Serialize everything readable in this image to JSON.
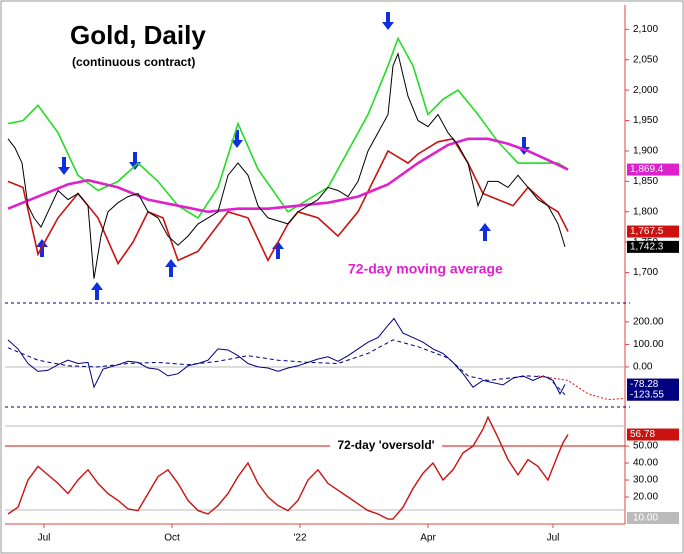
{
  "chart_data": [
    {
      "type": "line",
      "title": "Gold, Daily",
      "subtitle": "(continuous contract)",
      "annotation": "72-day moving average",
      "xlim": [
        0,
        61.7
      ],
      "ylim": [
        1650,
        2140
      ],
      "yticks": [
        {
          "value": 1700,
          "label": "1,700"
        },
        {
          "value": 1750,
          "label": "1,750"
        },
        {
          "value": 1800,
          "label": "1,800"
        },
        {
          "value": 1850,
          "label": "1,850"
        },
        {
          "value": 1900,
          "label": "1,900"
        },
        {
          "value": 1950,
          "label": "1,950"
        },
        {
          "value": 2000,
          "label": "2,000"
        },
        {
          "value": 2050,
          "label": "2,050"
        },
        {
          "value": 2100,
          "label": "2,100"
        }
      ],
      "series": [
        {
          "color": "#22dd22",
          "width": 1.6,
          "x": [
            0,
            1.5,
            3,
            5,
            7,
            9,
            11,
            13,
            15,
            17,
            19,
            21,
            23,
            25,
            28,
            30,
            32,
            34,
            36,
            38,
            39,
            40.5,
            42,
            43.5,
            45,
            47,
            49,
            51,
            53,
            55,
            56
          ],
          "values": [
            1945,
            1950,
            1975,
            1930,
            1860,
            1835,
            1850,
            1880,
            1850,
            1810,
            1790,
            1840,
            1945,
            1870,
            1800,
            1820,
            1840,
            1900,
            1960,
            2040,
            2085,
            2040,
            1960,
            1985,
            2000,
            1960,
            1915,
            1880,
            1880,
            1880,
            1870
          ]
        },
        {
          "color": "#cc1111",
          "width": 1.6,
          "x": [
            0,
            1.5,
            3,
            5,
            7,
            9,
            11,
            12.5,
            14,
            15.5,
            17,
            19,
            22,
            24,
            26,
            28,
            29,
            31,
            33,
            35,
            38,
            40,
            41,
            43,
            44.5,
            46,
            47.5,
            49,
            50.5,
            52,
            54,
            55,
            56
          ],
          "values": [
            1850,
            1840,
            1730,
            1790,
            1830,
            1790,
            1715,
            1750,
            1800,
            1790,
            1720,
            1735,
            1800,
            1790,
            1720,
            1780,
            1800,
            1790,
            1760,
            1800,
            1900,
            1880,
            1895,
            1915,
            1920,
            1880,
            1830,
            1820,
            1810,
            1840,
            1810,
            1800,
            1767.5
          ],
          "last_label": "1,767.5"
        },
        {
          "color": "#dd22cc",
          "width": 2.6,
          "x": [
            0,
            3,
            6,
            8,
            11,
            14,
            17,
            20,
            23,
            26,
            29,
            32,
            35,
            38,
            41,
            44,
            46,
            48,
            50,
            52,
            54,
            56
          ],
          "values": [
            1805,
            1825,
            1845,
            1852,
            1840,
            1820,
            1810,
            1800,
            1805,
            1805,
            1810,
            1815,
            1825,
            1845,
            1880,
            1910,
            1920,
            1920,
            1912,
            1900,
            1885,
            1869.4
          ],
          "last_label": "1,869.4"
        },
        {
          "color": "#000000",
          "width": 1,
          "x": [
            0,
            0.7,
            1.4,
            2,
            2.6,
            3.3,
            4,
            5,
            6,
            7,
            8,
            8.6,
            9.3,
            10,
            11,
            12,
            13,
            14,
            15,
            16,
            17,
            18,
            19,
            20,
            21,
            22,
            23,
            24,
            25,
            26,
            27,
            28,
            29,
            30,
            31,
            32,
            33,
            34,
            35,
            36,
            37,
            38,
            38.5,
            39,
            40,
            41,
            42,
            43,
            44,
            45,
            46,
            47,
            48,
            49,
            50,
            51,
            52,
            53,
            54,
            55,
            55.7
          ],
          "values": [
            1920,
            1905,
            1880,
            1810,
            1790,
            1775,
            1800,
            1835,
            1820,
            1830,
            1810,
            1690,
            1760,
            1800,
            1815,
            1825,
            1830,
            1800,
            1790,
            1760,
            1745,
            1760,
            1780,
            1790,
            1800,
            1860,
            1880,
            1860,
            1810,
            1790,
            1785,
            1780,
            1800,
            1810,
            1820,
            1840,
            1835,
            1825,
            1850,
            1900,
            1930,
            1960,
            2040,
            2060,
            1990,
            1950,
            1940,
            1960,
            1930,
            1910,
            1880,
            1810,
            1850,
            1850,
            1840,
            1860,
            1840,
            1820,
            1810,
            1780,
            1742.3
          ],
          "last_label": "1,742.3"
        }
      ]
    },
    {
      "type": "line",
      "xlim": [
        0,
        61.7
      ],
      "ylim": [
        -178,
        275
      ],
      "yticks": [
        {
          "value": 0,
          "label": "0.00"
        },
        {
          "value": 100,
          "label": "100.00"
        },
        {
          "value": 200,
          "label": "200.00"
        }
      ],
      "series": [
        {
          "color": "#000080",
          "width": 1,
          "style": "dashed",
          "x": [
            0,
            3,
            6,
            9,
            12,
            15,
            18,
            21,
            24,
            27,
            30,
            33,
            36,
            38.5,
            41,
            44,
            46,
            48,
            50,
            52,
            54,
            55.7
          ],
          "values": [
            85,
            30,
            5,
            0,
            15,
            20,
            10,
            25,
            50,
            30,
            20,
            15,
            60,
            120,
            90,
            40,
            -40,
            -60,
            -50,
            -40,
            -45,
            -123.55
          ],
          "last_label": "-123.55"
        },
        {
          "color": "#000080",
          "width": 1,
          "x": [
            0,
            1,
            2,
            3,
            4,
            5,
            6,
            7,
            8,
            8.6,
            9.5,
            11,
            12,
            13,
            14,
            15,
            16,
            17,
            18,
            19,
            20,
            21,
            22,
            23,
            24,
            25,
            26,
            27,
            28,
            29,
            30,
            31,
            32,
            33,
            34,
            35,
            36,
            37,
            38,
            38.6,
            39.5,
            40.5,
            41.5,
            42.5,
            43.5,
            44.5,
            45.5,
            46.5,
            47.5,
            48.5,
            49.5,
            50.5,
            51.5,
            52.5,
            53.5,
            54.5,
            55.2,
            55.7
          ],
          "values": [
            120,
            80,
            15,
            -20,
            -15,
            10,
            30,
            15,
            20,
            -90,
            -10,
            10,
            25,
            20,
            -5,
            -10,
            -40,
            -30,
            5,
            15,
            30,
            80,
            75,
            50,
            15,
            0,
            -5,
            -20,
            -5,
            5,
            20,
            35,
            45,
            25,
            50,
            80,
            110,
            130,
            185,
            215,
            150,
            130,
            110,
            80,
            60,
            20,
            -30,
            -90,
            -60,
            -70,
            -80,
            -50,
            -40,
            -60,
            -40,
            -60,
            -120,
            -78.28
          ],
          "last_label": "-78.28"
        },
        {
          "color": "#dd1111",
          "width": 1,
          "style": "dotted",
          "x": [
            53,
            56,
            58,
            60,
            61.7
          ],
          "values": [
            -40,
            -60,
            -120,
            -145,
            -140
          ]
        }
      ]
    },
    {
      "type": "line",
      "annotation": "72-day 'oversold'",
      "xlim": [
        0,
        61.7
      ],
      "ylim": [
        5.3,
        72.4
      ],
      "xticks": [
        {
          "value": 3.6,
          "label": "Jul"
        },
        {
          "value": 16.4,
          "label": "Oct"
        },
        {
          "value": 29.2,
          "label": "'22"
        },
        {
          "value": 42,
          "label": "Apr"
        },
        {
          "value": 54.5,
          "label": "Jul"
        }
      ],
      "yticks": [
        {
          "value": 20,
          "label": "20.00"
        },
        {
          "value": 30,
          "label": "30.00"
        },
        {
          "value": 40,
          "label": "40.00"
        },
        {
          "value": 50,
          "label": "50.00"
        }
      ],
      "bottom_label": "10.00",
      "line_level": 50,
      "series": [
        {
          "color": "#cc1111",
          "width": 1.4,
          "x": [
            0,
            1,
            2,
            3,
            4,
            5,
            6,
            7,
            8,
            9,
            10,
            11,
            12,
            13,
            14,
            15,
            16,
            17,
            18,
            19,
            20,
            21,
            22,
            23,
            24,
            25,
            26,
            27,
            28,
            29,
            30,
            31,
            32,
            33,
            34,
            35,
            36,
            37,
            38,
            38.5,
            39.5,
            40.5,
            41.5,
            42.5,
            43.5,
            44.5,
            45.5,
            46.5,
            47.5,
            48,
            49,
            50,
            51,
            52,
            53,
            54,
            55,
            55.5,
            56
          ],
          "values": [
            10,
            14,
            30,
            38,
            33,
            28,
            22,
            30,
            36,
            28,
            22,
            18,
            13,
            12,
            22,
            32,
            36,
            28,
            18,
            12,
            10,
            15,
            22,
            32,
            40,
            28,
            20,
            15,
            12,
            18,
            30,
            36,
            28,
            24,
            20,
            16,
            12,
            10,
            7,
            7,
            14,
            25,
            34,
            40,
            30,
            36,
            46,
            50,
            60,
            67,
            55,
            42,
            33,
            42,
            38,
            30,
            45,
            52,
            56.78
          ],
          "last_label": "56.78"
        }
      ]
    }
  ]
}
